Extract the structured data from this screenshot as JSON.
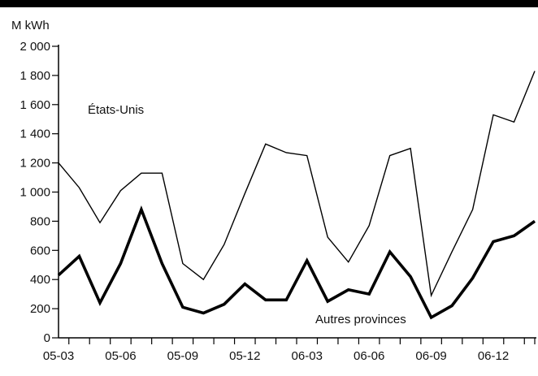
{
  "chart_data": {
    "type": "line",
    "title": "",
    "xlabel": "",
    "ylabel": "M kWh",
    "ylim": [
      0,
      2000
    ],
    "yticks": [
      0,
      200,
      400,
      600,
      800,
      1000,
      1200,
      1400,
      1600,
      1800,
      2000
    ],
    "ytick_labels": [
      "0",
      "200",
      "400",
      "600",
      "800",
      "1 000",
      "1 200",
      "1 400",
      "1 600",
      "1 800",
      "2 000"
    ],
    "x": [
      "05-03",
      "05-04",
      "05-05",
      "05-06",
      "05-07",
      "05-08",
      "05-09",
      "05-10",
      "05-11",
      "05-12",
      "06-01",
      "06-02",
      "06-03",
      "06-04",
      "06-05",
      "06-06",
      "06-07",
      "06-08",
      "06-09",
      "06-10",
      "06-11",
      "06-12",
      "07-01",
      "07-02"
    ],
    "xtick_labels": [
      "05-03",
      "05-06",
      "05-09",
      "05-12",
      "06-03",
      "06-06",
      "06-09",
      "06-12"
    ],
    "grid": false,
    "series": [
      {
        "name": "États-Unis",
        "color": "#000000",
        "line": "thin",
        "values": [
          1200,
          1030,
          790,
          1010,
          1130,
          1130,
          510,
          400,
          640,
          990,
          1330,
          1270,
          1250,
          690,
          520,
          770,
          1250,
          1300,
          290,
          590,
          880,
          1530,
          1480,
          1830
        ]
      },
      {
        "name": "Autres provinces",
        "color": "#000000",
        "line": "thick",
        "values": [
          430,
          560,
          240,
          510,
          880,
          510,
          210,
          170,
          230,
          370,
          260,
          260,
          530,
          250,
          330,
          300,
          590,
          420,
          140,
          220,
          410,
          660,
          700,
          800
        ]
      }
    ]
  }
}
